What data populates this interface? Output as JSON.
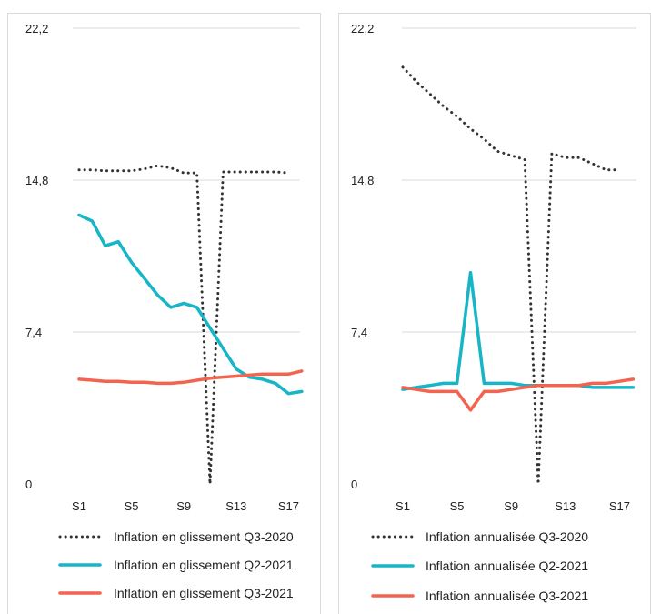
{
  "colors": {
    "q3_2020": "#333333",
    "q2_2021": "#17b5c6",
    "q3_2021": "#f26450",
    "grid": "#d9d9d9"
  },
  "chart_data": [
    {
      "type": "line",
      "x": [
        "S1",
        "S2",
        "S3",
        "S4",
        "S5",
        "S6",
        "S7",
        "S8",
        "S9",
        "S10",
        "S11",
        "S12",
        "S13",
        "S14",
        "S15",
        "S16",
        "S17",
        "S18"
      ],
      "x_tick_labels": [
        "S1",
        "S5",
        "S9",
        "S13",
        "S17"
      ],
      "y_tick_labels": [
        "0",
        "7,4",
        "14,8",
        "22,2"
      ],
      "ylim": [
        0,
        22.2
      ],
      "grid": "horizontal",
      "legend_position": "bottom",
      "series": [
        {
          "name": "Inflation en glissement Q3-2020",
          "style": "dotted",
          "color": "#333333",
          "values": [
            15.3,
            15.3,
            15.25,
            15.25,
            15.25,
            15.35,
            15.5,
            15.4,
            15.15,
            15.15,
            0,
            15.2,
            15.2,
            15.2,
            15.2,
            15.2,
            15.15,
            null
          ]
        },
        {
          "name": "Inflation en glissement Q2-2021",
          "style": "solid",
          "color": "#17b5c6",
          "values": [
            13.1,
            12.8,
            11.6,
            11.8,
            10.8,
            10.0,
            9.2,
            8.6,
            8.8,
            8.6,
            7.6,
            6.6,
            5.6,
            5.2,
            5.1,
            4.9,
            4.4,
            4.5
          ]
        },
        {
          "name": "Inflation en glissement Q3-2021",
          "style": "solid",
          "color": "#f26450",
          "values": [
            5.1,
            5.05,
            5.0,
            5.0,
            4.95,
            4.95,
            4.9,
            4.9,
            4.95,
            5.05,
            5.15,
            5.2,
            5.25,
            5.3,
            5.35,
            5.35,
            5.35,
            5.5
          ]
        }
      ]
    },
    {
      "type": "line",
      "x": [
        "S1",
        "S2",
        "S3",
        "S4",
        "S5",
        "S6",
        "S7",
        "S8",
        "S9",
        "S10",
        "S11",
        "S12",
        "S13",
        "S14",
        "S15",
        "S16",
        "S17",
        "S18"
      ],
      "x_tick_labels": [
        "S1",
        "S5",
        "S9",
        "S13",
        "S17"
      ],
      "y_tick_labels": [
        "0",
        "7,4",
        "14,8",
        "22,2"
      ],
      "ylim": [
        0,
        22.2
      ],
      "grid": "horizontal",
      "legend_position": "bottom",
      "series": [
        {
          "name": "Inflation annualisée Q3-2020",
          "style": "dotted",
          "color": "#333333",
          "values": [
            20.3,
            19.6,
            19.0,
            18.4,
            17.9,
            17.3,
            16.8,
            16.2,
            16.0,
            15.8,
            0,
            16.1,
            15.9,
            15.9,
            15.6,
            15.3,
            15.3,
            null
          ]
        },
        {
          "name": "Inflation annualisée Q2-2021",
          "style": "solid",
          "color": "#17b5c6",
          "values": [
            4.6,
            4.7,
            4.8,
            4.9,
            4.9,
            10.3,
            4.9,
            4.9,
            4.9,
            4.8,
            4.8,
            4.8,
            4.8,
            4.8,
            4.7,
            4.7,
            4.7,
            4.7
          ]
        },
        {
          "name": "Inflation annualisée Q3-2021",
          "style": "solid",
          "color": "#f26450",
          "values": [
            4.7,
            4.6,
            4.5,
            4.5,
            4.5,
            3.6,
            4.5,
            4.5,
            4.6,
            4.7,
            4.8,
            4.8,
            4.8,
            4.8,
            4.9,
            4.9,
            5.0,
            5.1
          ]
        }
      ]
    }
  ]
}
